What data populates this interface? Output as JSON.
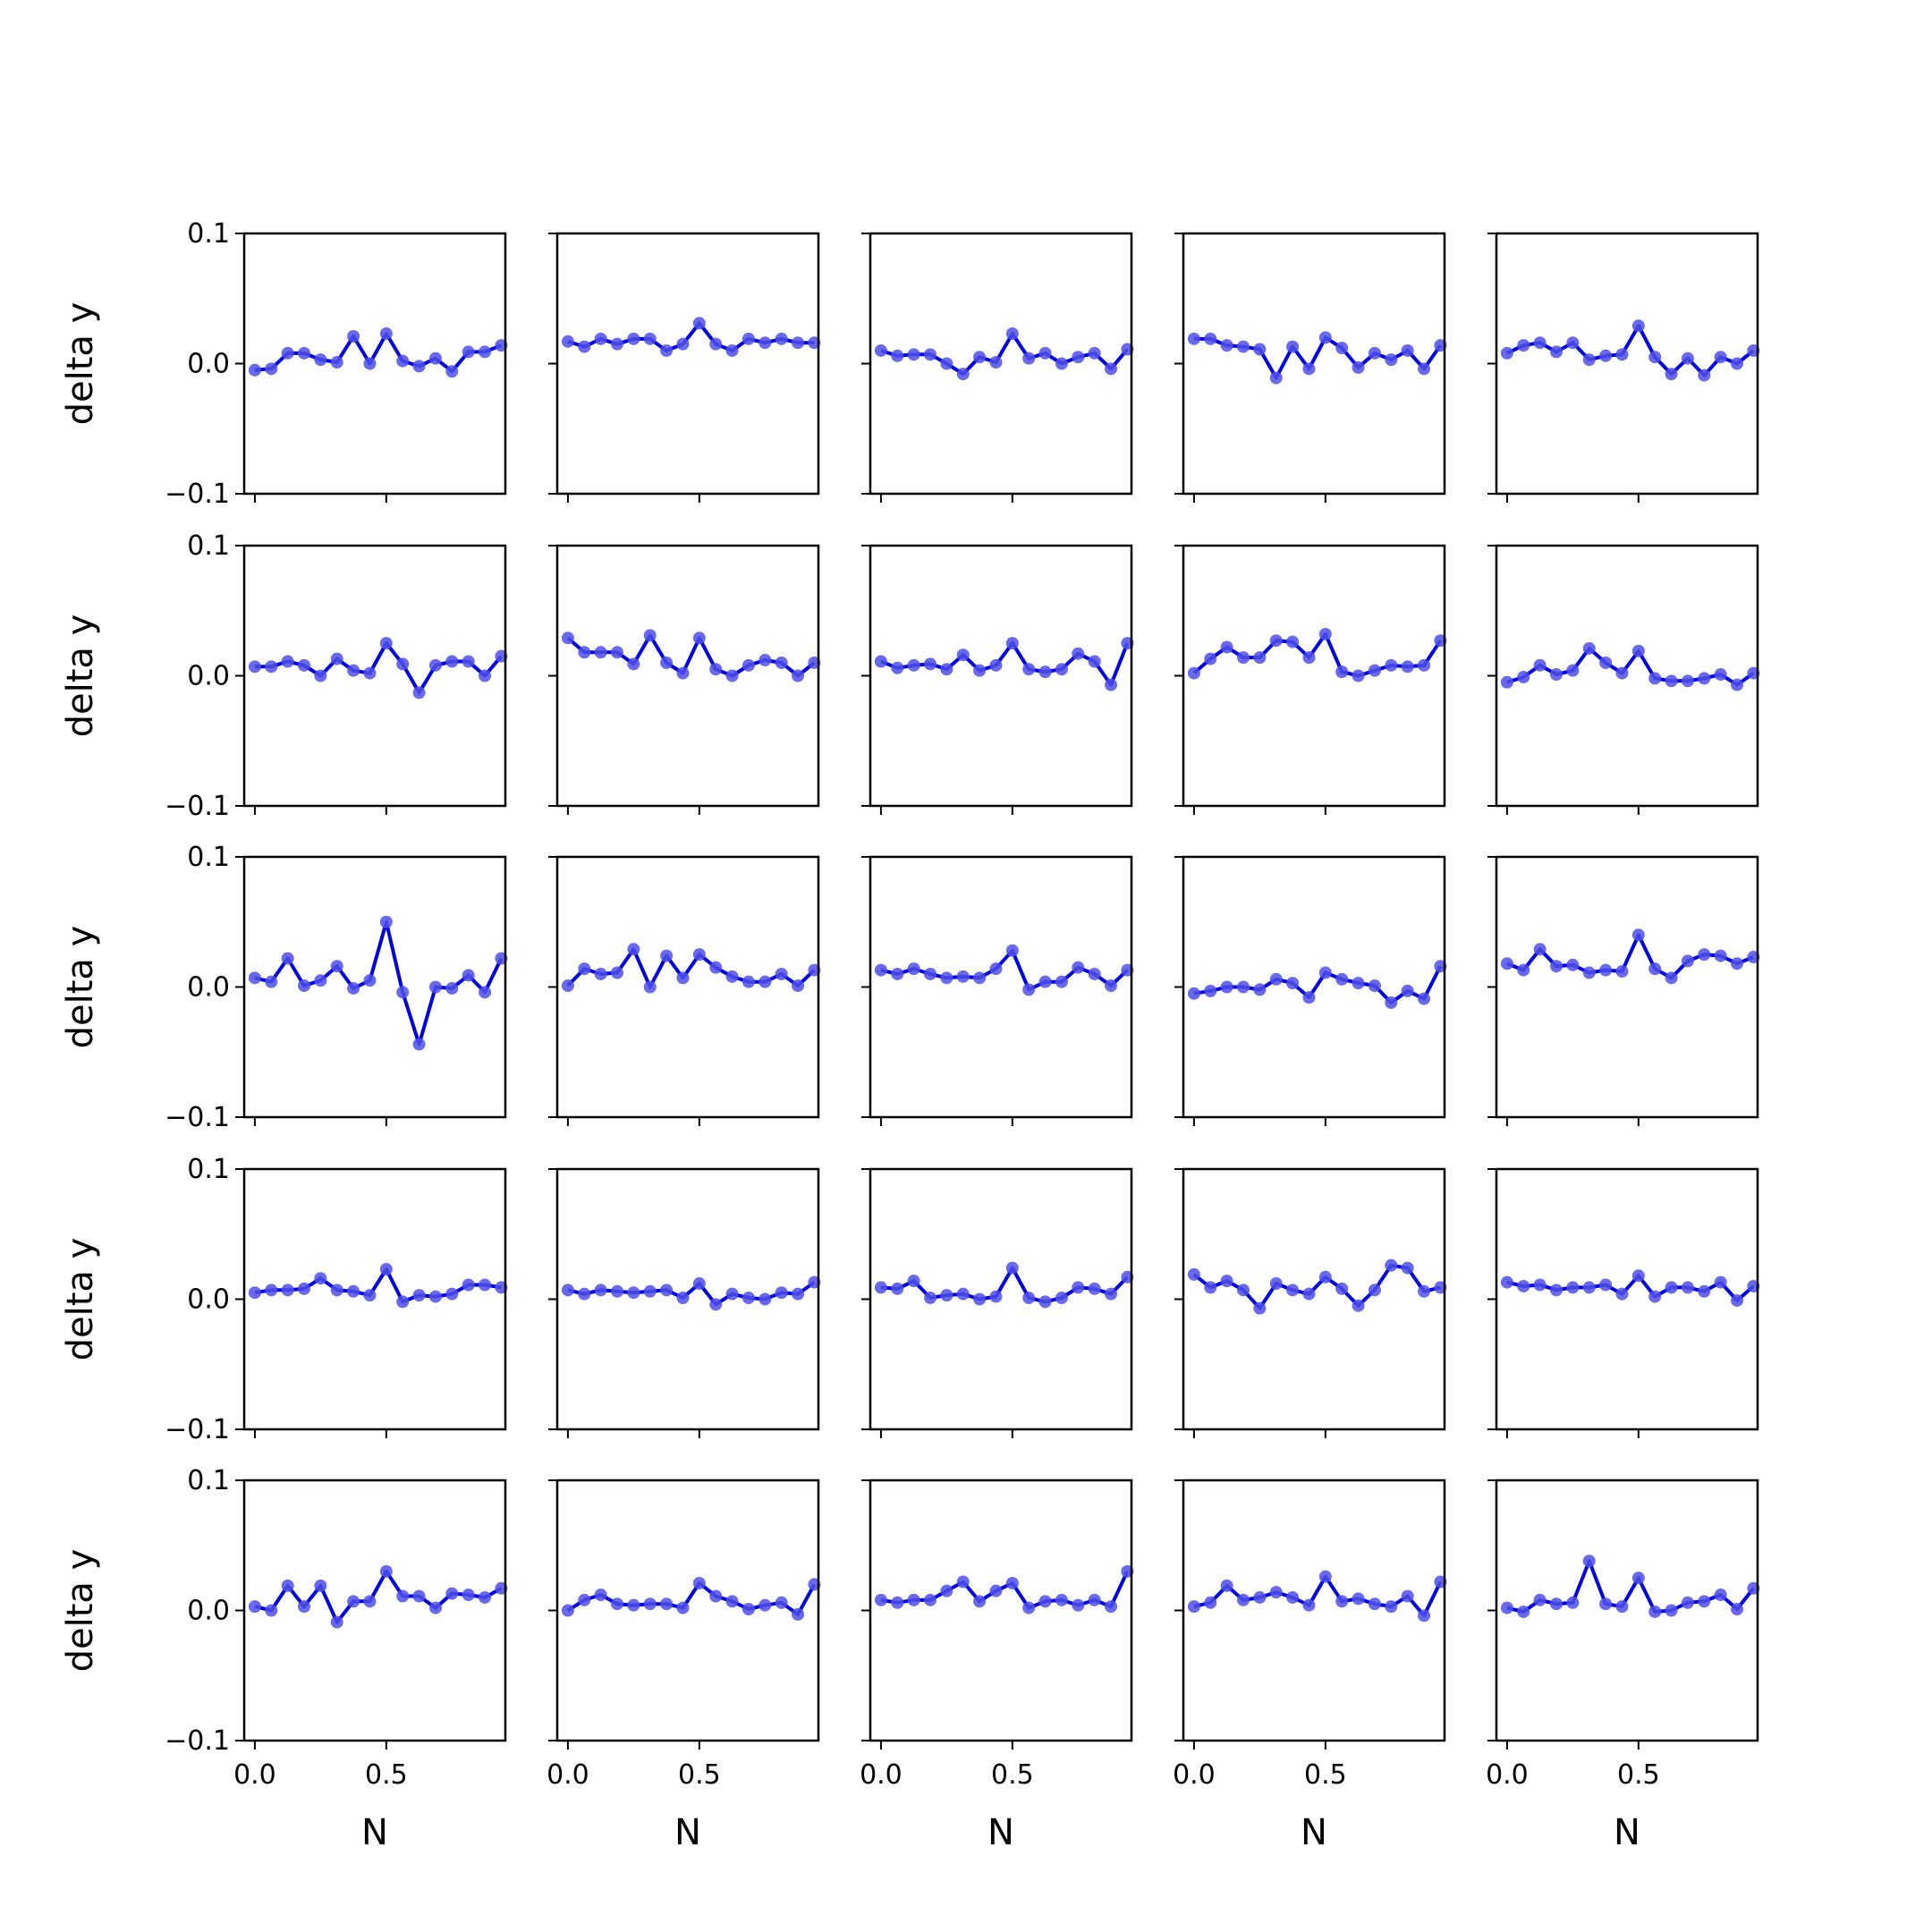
{
  "figure": {
    "background": "#ffffff"
  },
  "style": {
    "line_color": "#0000e0",
    "marker_color": "#4f4fe8"
  },
  "axes": {
    "xlabel": "N",
    "ylabel": "delta y",
    "xlim": [
      -0.0406,
      0.9531
    ],
    "ylim": [
      -0.1,
      0.1
    ],
    "xticks": [
      0.0,
      0.5
    ],
    "xtick_labels": [
      "0.0",
      "0.5"
    ],
    "yticks": [
      -0.1,
      0.0,
      0.1
    ],
    "ytick_labels": [
      "−0.1",
      "0.0",
      "0.1"
    ]
  },
  "chart_data": {
    "type": "line",
    "layout": "5x5 grid of small multiples",
    "x": [
      0.0,
      0.0625,
      0.125,
      0.1875,
      0.25,
      0.3125,
      0.375,
      0.4375,
      0.5,
      0.5625,
      0.625,
      0.6875,
      0.75,
      0.8125,
      0.875,
      0.9375
    ],
    "panels": [
      [
        -0.005,
        -0.004,
        0.008,
        0.008,
        0.003,
        0.001,
        0.021,
        0.0,
        0.023,
        0.002,
        -0.002,
        0.004,
        -0.006,
        0.009,
        0.009,
        0.014
      ],
      [
        0.017,
        0.013,
        0.019,
        0.015,
        0.019,
        0.019,
        0.01,
        0.015,
        0.031,
        0.015,
        0.01,
        0.019,
        0.016,
        0.019,
        0.016,
        0.016
      ],
      [
        0.01,
        0.006,
        0.007,
        0.007,
        0.0,
        -0.008,
        0.005,
        0.001,
        0.023,
        0.004,
        0.008,
        0.0,
        0.005,
        0.008,
        -0.004,
        0.011
      ],
      [
        0.019,
        0.019,
        0.014,
        0.013,
        0.011,
        -0.011,
        0.013,
        -0.004,
        0.02,
        0.012,
        -0.003,
        0.008,
        0.003,
        0.01,
        -0.004,
        0.014
      ],
      [
        0.008,
        0.014,
        0.016,
        0.009,
        0.016,
        0.003,
        0.006,
        0.007,
        0.029,
        0.005,
        -0.008,
        0.004,
        -0.009,
        0.005,
        0.0,
        0.01
      ],
      [
        0.007,
        0.007,
        0.011,
        0.008,
        0.0,
        0.013,
        0.004,
        0.002,
        0.025,
        0.009,
        -0.013,
        0.008,
        0.011,
        0.011,
        0.0,
        0.015
      ],
      [
        0.029,
        0.018,
        0.018,
        0.018,
        0.009,
        0.031,
        0.01,
        0.002,
        0.029,
        0.005,
        0.0,
        0.008,
        0.012,
        0.01,
        0.0,
        0.01
      ],
      [
        0.011,
        0.006,
        0.008,
        0.009,
        0.005,
        0.016,
        0.004,
        0.008,
        0.025,
        0.005,
        0.003,
        0.005,
        0.017,
        0.011,
        -0.007,
        0.025
      ],
      [
        0.002,
        0.013,
        0.022,
        0.014,
        0.014,
        0.027,
        0.026,
        0.014,
        0.032,
        0.003,
        0.0,
        0.004,
        0.008,
        0.007,
        0.008,
        0.027
      ],
      [
        -0.005,
        -0.001,
        0.008,
        0.001,
        0.004,
        0.021,
        0.01,
        0.002,
        0.019,
        -0.002,
        -0.004,
        -0.004,
        -0.002,
        0.001,
        -0.007,
        0.002
      ],
      [
        0.007,
        0.004,
        0.022,
        0.001,
        0.005,
        0.016,
        -0.001,
        0.005,
        0.05,
        -0.004,
        -0.044,
        0.0,
        -0.001,
        0.009,
        -0.004,
        0.022
      ],
      [
        0.001,
        0.014,
        0.01,
        0.011,
        0.029,
        0.0,
        0.024,
        0.007,
        0.025,
        0.015,
        0.008,
        0.004,
        0.004,
        0.01,
        0.001,
        0.013
      ],
      [
        0.013,
        0.01,
        0.014,
        0.01,
        0.007,
        0.008,
        0.007,
        0.014,
        0.028,
        -0.002,
        0.004,
        0.004,
        0.015,
        0.01,
        0.001,
        0.013
      ],
      [
        -0.005,
        -0.003,
        0.0,
        0.0,
        -0.002,
        0.006,
        0.003,
        -0.008,
        0.011,
        0.006,
        0.003,
        0.001,
        -0.012,
        -0.003,
        -0.009,
        0.016
      ],
      [
        0.018,
        0.013,
        0.029,
        0.016,
        0.017,
        0.011,
        0.013,
        0.012,
        0.04,
        0.014,
        0.007,
        0.02,
        0.025,
        0.024,
        0.018,
        0.023
      ],
      [
        0.005,
        0.007,
        0.007,
        0.008,
        0.016,
        0.007,
        0.006,
        0.003,
        0.023,
        -0.002,
        0.003,
        0.002,
        0.004,
        0.011,
        0.011,
        0.009
      ],
      [
        0.007,
        0.004,
        0.007,
        0.006,
        0.005,
        0.006,
        0.007,
        0.001,
        0.012,
        -0.004,
        0.004,
        0.001,
        0.0,
        0.005,
        0.004,
        0.013
      ],
      [
        0.009,
        0.008,
        0.014,
        0.001,
        0.003,
        0.004,
        0.0,
        0.002,
        0.024,
        0.001,
        -0.002,
        0.001,
        0.009,
        0.008,
        0.004,
        0.017
      ],
      [
        0.019,
        0.009,
        0.014,
        0.007,
        -0.007,
        0.012,
        0.007,
        0.004,
        0.017,
        0.008,
        -0.005,
        0.007,
        0.026,
        0.024,
        0.006,
        0.009
      ],
      [
        0.013,
        0.01,
        0.011,
        0.007,
        0.009,
        0.009,
        0.011,
        0.004,
        0.018,
        0.002,
        0.009,
        0.009,
        0.006,
        0.013,
        -0.001,
        0.01
      ],
      [
        0.003,
        0.0,
        0.019,
        0.003,
        0.019,
        -0.009,
        0.007,
        0.007,
        0.03,
        0.011,
        0.011,
        0.002,
        0.013,
        0.012,
        0.01,
        0.017
      ],
      [
        0.0,
        0.008,
        0.012,
        0.005,
        0.004,
        0.005,
        0.005,
        0.002,
        0.021,
        0.011,
        0.007,
        0.001,
        0.004,
        0.006,
        -0.003,
        0.02
      ],
      [
        0.008,
        0.006,
        0.008,
        0.008,
        0.015,
        0.022,
        0.007,
        0.015,
        0.021,
        0.002,
        0.007,
        0.008,
        0.004,
        0.008,
        0.003,
        0.03
      ],
      [
        0.003,
        0.006,
        0.019,
        0.008,
        0.01,
        0.014,
        0.01,
        0.004,
        0.026,
        0.007,
        0.009,
        0.005,
        0.003,
        0.011,
        -0.004,
        0.022
      ],
      [
        0.002,
        -0.001,
        0.008,
        0.005,
        0.006,
        0.038,
        0.005,
        0.003,
        0.025,
        -0.001,
        0.0,
        0.006,
        0.007,
        0.012,
        0.001,
        0.017
      ]
    ]
  }
}
